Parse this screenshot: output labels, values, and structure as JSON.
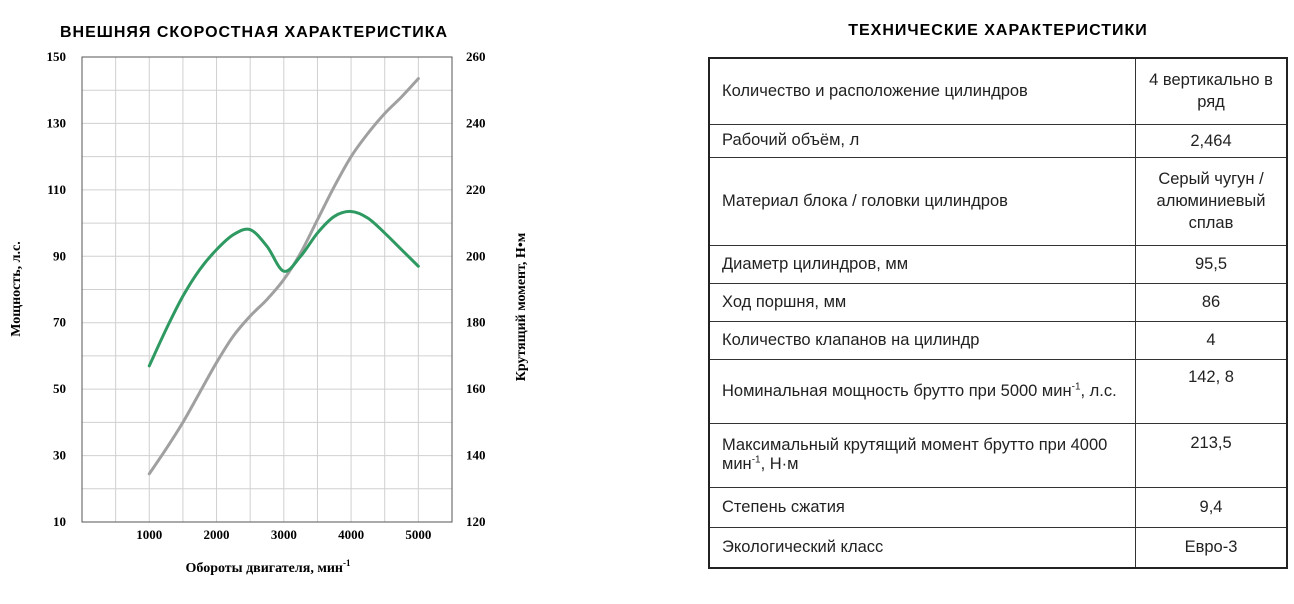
{
  "chart_data": {
    "type": "line",
    "title": "ВНЕШНЯЯ СКОРОСТНАЯ ХАРАКТЕРИСТИКА",
    "xlabel": "Обороты двигателя, мин",
    "xlabel_sup": "-1",
    "ylabel_left": "Мощность, л.с.",
    "ylabel_right": "Крутящий момент, Н•м",
    "xlim": [
      0,
      5500
    ],
    "ylim_left": [
      10,
      150
    ],
    "ylim_right": [
      120,
      260
    ],
    "x_ticks": [
      1000,
      2000,
      3000,
      4000,
      5000
    ],
    "y_ticks_left": [
      10,
      30,
      50,
      70,
      90,
      110,
      130,
      150
    ],
    "y_ticks_right": [
      120,
      140,
      160,
      180,
      200,
      220,
      240,
      260
    ],
    "grid": true,
    "series": [
      {
        "axis": "left",
        "color": "#a0a0a0",
        "x": [
          1000,
          1250,
          1500,
          1750,
          2000,
          2250,
          2500,
          2750,
          3000,
          3250,
          3500,
          3750,
          4000,
          4250,
          4500,
          4750,
          5000
        ],
        "y": [
          24.5,
          32,
          40,
          49,
          58,
          66,
          72,
          77,
          83,
          91,
          101,
          111,
          120,
          127,
          133,
          138,
          143.5
        ]
      },
      {
        "axis": "right",
        "color": "#2e9a62",
        "x": [
          1000,
          1250,
          1500,
          1750,
          2000,
          2250,
          2500,
          2750,
          3000,
          3250,
          3500,
          3750,
          4000,
          4250,
          4500,
          4750,
          5000
        ],
        "y": [
          167,
          178,
          188,
          196,
          202,
          206.5,
          208,
          203,
          195.5,
          200,
          207,
          212,
          213.5,
          211.5,
          207,
          202,
          197
        ]
      }
    ]
  },
  "table": {
    "title": "ТЕХНИЧЕСКИЕ ХАРАКТЕРИСТИКИ",
    "rows": [
      {
        "param": "Количество и расположение цилиндров",
        "value": "4 вертикально в ряд"
      },
      {
        "param": "Рабочий объём, л",
        "value": "2,464"
      },
      {
        "param": "Материал блока / головки цилиндров",
        "value": "Серый чугун / алюминиевый сплав"
      },
      {
        "param": "Диаметр цилиндров, мм",
        "value": "95,5"
      },
      {
        "param": "Ход поршня, мм",
        "value": "86"
      },
      {
        "param": "Количество клапанов на цилиндр",
        "value": "4"
      },
      {
        "param": "Номинальная мощность брутто при 5000 мин",
        "param_sup": "-1",
        "param_tail": ", л.с.",
        "value": "142, 8"
      },
      {
        "param": "Максимальный крутящий момент брутто при 4000 мин",
        "param_sup": "-1",
        "param_tail": ", Н·м",
        "value": "213,5"
      },
      {
        "param": "Степень сжатия",
        "value": "9,4"
      },
      {
        "param": "Экологический класс",
        "value": "Евро-3"
      }
    ]
  }
}
